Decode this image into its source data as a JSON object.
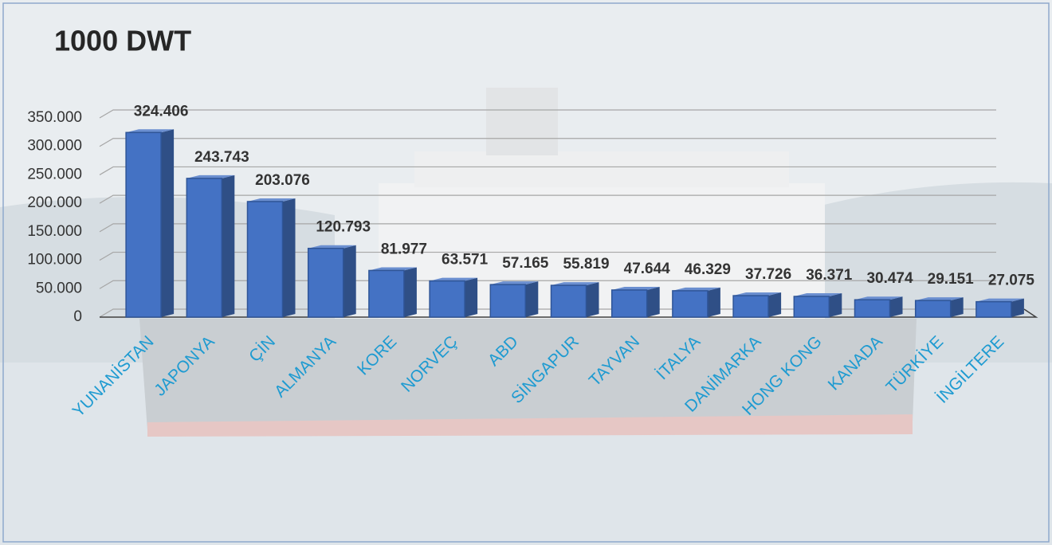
{
  "chart_data": {
    "type": "bar3d",
    "title": "1000 DWT",
    "categories": [
      "YUNANİSTAN",
      "JAPONYA",
      "ÇİN",
      "ALMANYA",
      "KORE",
      "NORVEÇ",
      "ABD",
      "SİNGAPUR",
      "TAYVAN",
      "İTALYA",
      "DANİMARKA",
      "HONG KONG",
      "KANADA",
      "TÜRKİYE",
      "İNGİLTERE"
    ],
    "values": [
      324406,
      243743,
      203076,
      120793,
      81977,
      63571,
      57165,
      55819,
      47644,
      46329,
      37726,
      36371,
      30474,
      29151,
      27075
    ],
    "value_labels": [
      "324.406",
      "243.743",
      "203.076",
      "120.793",
      "81.977",
      "63.571",
      "57.165",
      "55.819",
      "47.644",
      "46.329",
      "37.726",
      "36.371",
      "30.474",
      "29.151",
      "27.075"
    ],
    "color": "#4472c4",
    "ylim": [
      0,
      350000
    ],
    "yticks": [
      0,
      {
        "value": 50000,
        "label": "50.000"
      },
      {
        "value": 100000,
        "label": "100.000"
      },
      {
        "value": 150000,
        "label": "150.000"
      },
      {
        "value": 200000,
        "label": "200.000"
      },
      {
        "value": 250000,
        "label": "250.000"
      },
      {
        "value": 300000,
        "label": "300.000"
      },
      {
        "value": 350000,
        "label": "350.000"
      }
    ],
    "grid": true
  }
}
